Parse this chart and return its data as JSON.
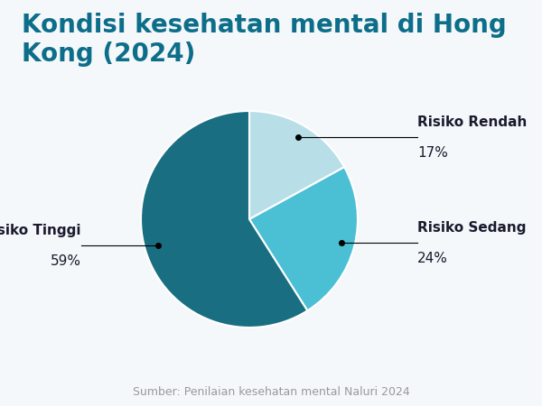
{
  "title": "Kondisi kesehatan mental di Hong Kong (2024)",
  "title_color": "#0d6e8a",
  "title_fontsize": 20,
  "source_text": "Sumber: Penilaian kesehatan mental Naluri 2024",
  "source_color": "#999999",
  "source_fontsize": 9,
  "slices": [
    {
      "label": "Risiko Rendah",
      "pct_label": "17%",
      "value": 17,
      "color": "#b8dfe8"
    },
    {
      "label": "Risiko Sedang",
      "pct_label": "24%",
      "value": 24,
      "color": "#4bbfd4"
    },
    {
      "label": "Risiko Tinggi",
      "pct_label": "59%",
      "value": 59,
      "color": "#1a6e82"
    }
  ],
  "background_color": "#f5f8fa",
  "startangle": 90,
  "label_fontsize": 11,
  "pct_fontsize": 11
}
